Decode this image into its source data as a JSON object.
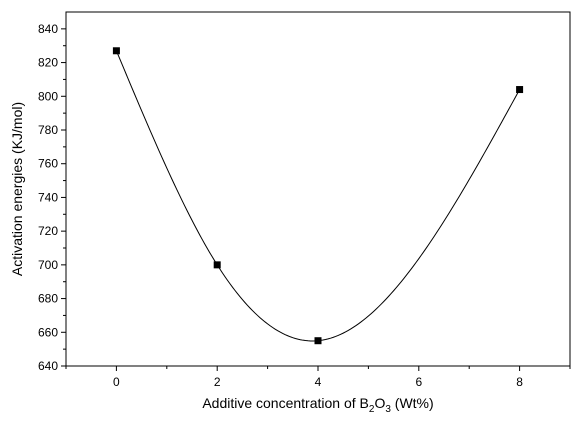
{
  "chart_data": {
    "type": "scatter",
    "title": "",
    "xlabel_prefix": "Additive concentration of B",
    "xlabel_sub1": "2",
    "xlabel_mid": "O",
    "xlabel_sub2": "3",
    "xlabel_suffix": " (Wt%)",
    "ylabel": "Activation energies (KJ/mol)",
    "xlim": [
      -1,
      9
    ],
    "ylim": [
      640,
      850
    ],
    "xticks": [
      0,
      2,
      4,
      6,
      8
    ],
    "yticks": [
      640,
      660,
      680,
      700,
      720,
      740,
      760,
      780,
      800,
      820,
      840
    ],
    "grid": false,
    "series": [
      {
        "x": [
          0,
          2,
          4,
          8
        ],
        "y": [
          827,
          700,
          655,
          804
        ],
        "marker": "square",
        "line": "smooth-fit"
      }
    ]
  }
}
